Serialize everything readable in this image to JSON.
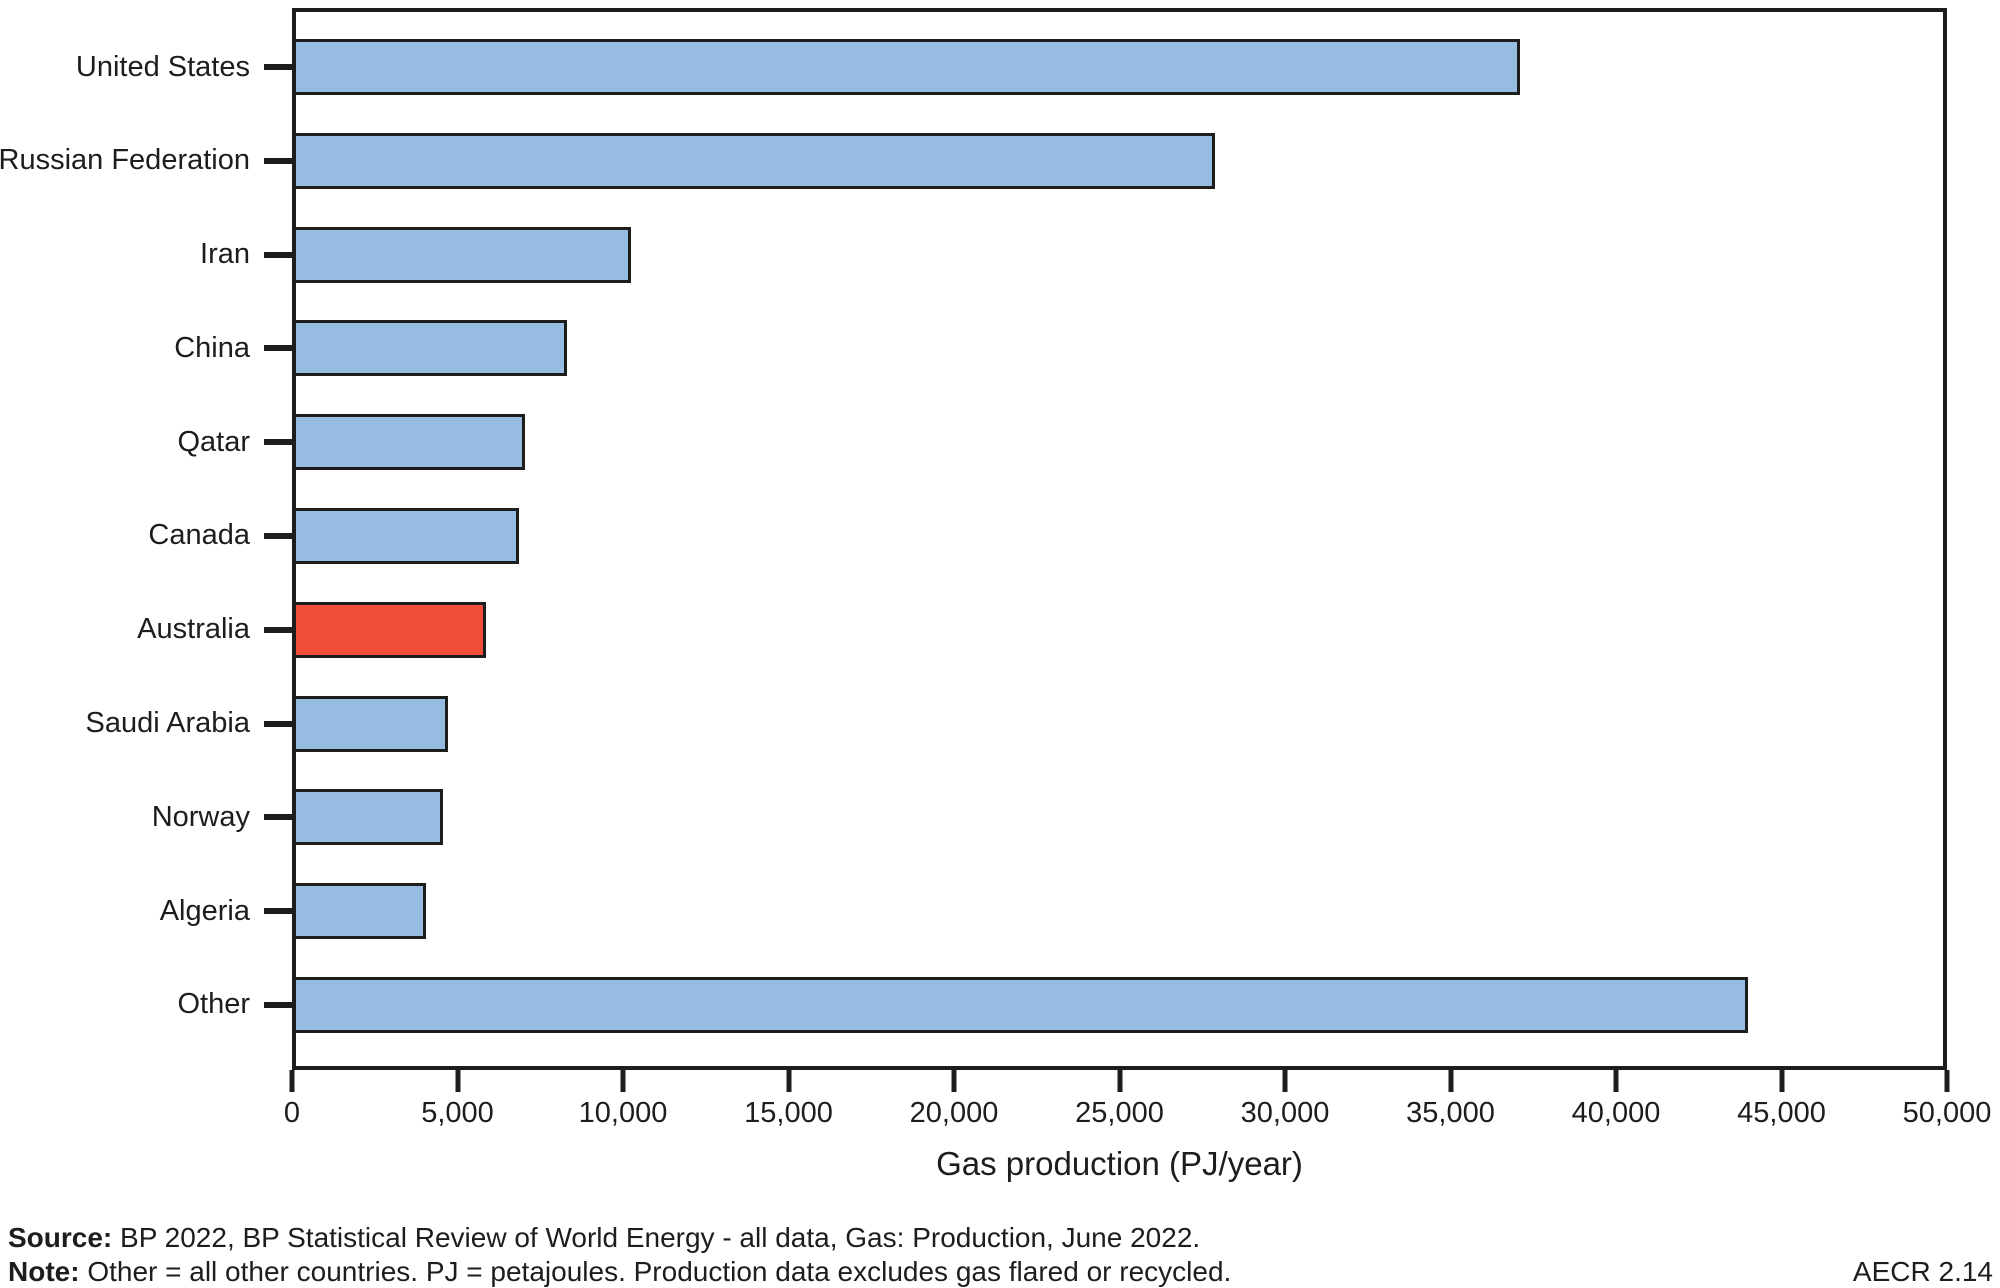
{
  "chart_data": {
    "type": "bar",
    "orientation": "horizontal",
    "title": "",
    "xlabel": "Gas production (PJ/year)",
    "ylabel": "",
    "xlim": [
      0,
      50000
    ],
    "x_tick_values": [
      0,
      5000,
      10000,
      15000,
      20000,
      25000,
      30000,
      35000,
      40000,
      45000,
      50000
    ],
    "x_tick_labels": [
      "0",
      "5,000",
      "10,000",
      "15,000",
      "20,000",
      "25,000",
      "30,000",
      "35,000",
      "40,000",
      "45,000",
      "50,000"
    ],
    "grid": false,
    "legend": "none",
    "categories": [
      "United States",
      "Russian Federation",
      "Iran",
      "China",
      "Qatar",
      "Canada",
      "Australia",
      "Saudi Arabia",
      "Norway",
      "Algeria",
      "Other"
    ],
    "values": [
      37100,
      27900,
      10250,
      8300,
      7050,
      6850,
      5850,
      4700,
      4550,
      4050,
      44000
    ],
    "highlight_category": "Australia",
    "colors": {
      "bar": "#97BCE2",
      "highlight": "#F04D38",
      "axis": "#1D1D1B"
    }
  },
  "footer": {
    "source_label": "Source:",
    "source_text": " BP 2022, BP Statistical Review of World Energy - all data, Gas: Production, June 2022.",
    "note_label": "Note:",
    "note_text": " Other = all other countries. PJ = petajoules. Production data excludes gas flared or recycled.",
    "figure_ref": "AECR 2.14"
  }
}
